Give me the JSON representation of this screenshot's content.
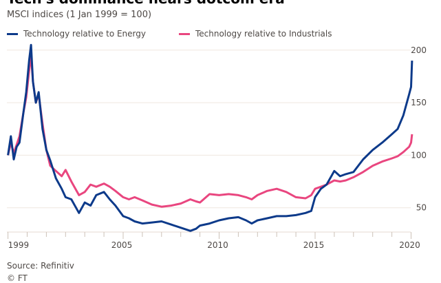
{
  "chart_data": {
    "type": "line",
    "title": "Tech's dominance nears dotcom era",
    "subtitle": "MSCI indices (1 Jan 1999 = 100)",
    "xlabel": "",
    "ylabel": "",
    "xlim": [
      1999,
      2020.1
    ],
    "ylim": [
      27,
      205
    ],
    "grid": true,
    "legend_position": "top-left",
    "x_ticks": [
      1999,
      2005,
      2010,
      2015,
      2020
    ],
    "x_tick_labels": [
      "1999",
      "2005",
      "2010",
      "2015",
      "2020"
    ],
    "y_ticks": [
      50,
      100,
      150,
      200
    ],
    "y_tick_labels": [
      "50",
      "100",
      "150",
      "200"
    ],
    "series": [
      {
        "name": "Technology relative to Energy",
        "color": "#0d3a8a",
        "x": [
          1999.0,
          1999.15,
          1999.3,
          1999.45,
          1999.6,
          1999.8,
          1999.95,
          2000.1,
          2000.2,
          2000.3,
          2000.45,
          2000.6,
          2000.8,
          2001.0,
          2001.2,
          2001.5,
          2001.8,
          2002.0,
          2002.3,
          2002.7,
          2003.0,
          2003.3,
          2003.6,
          2004.0,
          2004.3,
          2004.6,
          2005.0,
          2005.3,
          2005.6,
          2006.0,
          2006.5,
          2007.0,
          2007.5,
          2008.0,
          2008.5,
          2008.8,
          2009.0,
          2009.5,
          2010.0,
          2010.5,
          2011.0,
          2011.4,
          2011.7,
          2012.0,
          2012.5,
          2013.0,
          2013.5,
          2014.0,
          2014.5,
          2014.8,
          2015.0,
          2015.3,
          2015.6,
          2016.0,
          2016.3,
          2016.6,
          2017.0,
          2017.5,
          2018.0,
          2018.5,
          2019.0,
          2019.3,
          2019.6,
          2019.9,
          2020.0,
          2020.05
        ],
        "values": [
          100,
          118,
          96,
          108,
          112,
          140,
          160,
          190,
          205,
          170,
          150,
          160,
          125,
          105,
          95,
          78,
          68,
          60,
          58,
          45,
          55,
          52,
          62,
          65,
          58,
          52,
          42,
          40,
          37,
          35,
          36,
          37,
          34,
          31,
          28,
          30,
          33,
          35,
          38,
          40,
          41,
          38,
          35,
          38,
          40,
          42,
          42,
          43,
          45,
          47,
          60,
          68,
          72,
          85,
          80,
          82,
          84,
          96,
          105,
          112,
          120,
          125,
          138,
          158,
          165,
          190
        ]
      },
      {
        "name": "Technology relative to Industrials",
        "color": "#e9467f",
        "x": [
          1999.0,
          1999.15,
          1999.3,
          1999.45,
          1999.6,
          1999.8,
          1999.95,
          2000.1,
          2000.2,
          2000.3,
          2000.45,
          2000.6,
          2000.8,
          2001.0,
          2001.2,
          2001.5,
          2001.8,
          2002.0,
          2002.3,
          2002.7,
          2003.0,
          2003.3,
          2003.6,
          2004.0,
          2004.3,
          2004.6,
          2005.0,
          2005.3,
          2005.6,
          2006.0,
          2006.5,
          2007.0,
          2007.5,
          2008.0,
          2008.5,
          2008.8,
          2009.0,
          2009.5,
          2010.0,
          2010.5,
          2011.0,
          2011.4,
          2011.7,
          2012.0,
          2012.5,
          2013.0,
          2013.5,
          2014.0,
          2014.5,
          2014.8,
          2015.0,
          2015.3,
          2015.6,
          2016.0,
          2016.3,
          2016.6,
          2017.0,
          2017.5,
          2018.0,
          2018.5,
          2019.0,
          2019.3,
          2019.6,
          2019.9,
          2020.0,
          2020.05
        ],
        "values": [
          100,
          112,
          102,
          110,
          118,
          140,
          155,
          180,
          195,
          170,
          150,
          158,
          130,
          105,
          90,
          85,
          80,
          86,
          75,
          62,
          65,
          72,
          70,
          73,
          70,
          66,
          60,
          58,
          60,
          57,
          53,
          51,
          52,
          54,
          58,
          56,
          55,
          63,
          62,
          63,
          62,
          60,
          58,
          62,
          66,
          68,
          65,
          60,
          59,
          62,
          68,
          70,
          72,
          76,
          75,
          76,
          79,
          84,
          90,
          94,
          97,
          99,
          103,
          108,
          112,
          120
        ]
      }
    ]
  },
  "footer": {
    "source": "Source: Refinitiv",
    "copyright": "© FT"
  }
}
